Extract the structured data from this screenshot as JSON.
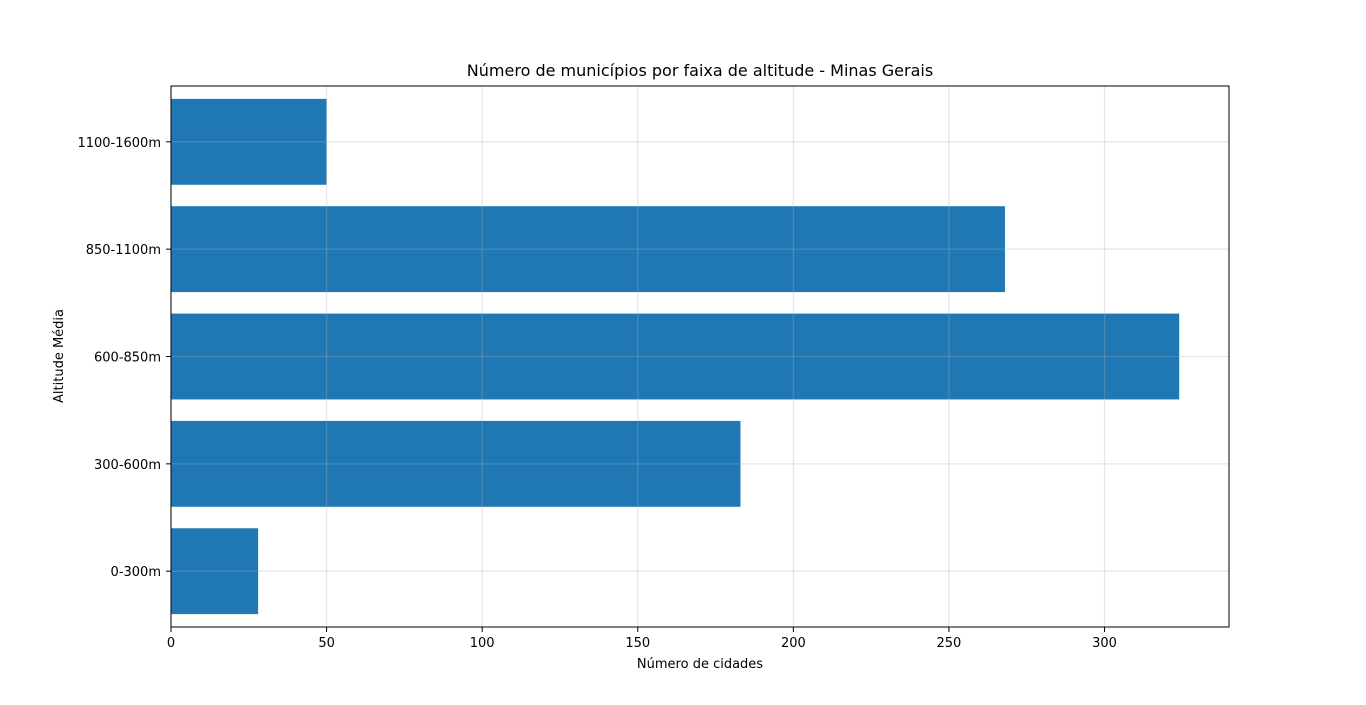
{
  "chart_data": {
    "type": "bar",
    "orientation": "horizontal",
    "title": "Número de municípios por faixa de altitude - Minas Gerais",
    "xlabel": "Número de cidades",
    "ylabel": "Altitude Média",
    "categories": [
      "0-300m",
      "300-600m",
      "600-850m",
      "850-1100m",
      "1100-1600m"
    ],
    "values": [
      28,
      183,
      324,
      268,
      50
    ],
    "xlim": [
      0,
      340
    ],
    "xticks": [
      0,
      50,
      100,
      150,
      200,
      250,
      300
    ],
    "grid": true,
    "bar_color": "#1f77b4"
  }
}
